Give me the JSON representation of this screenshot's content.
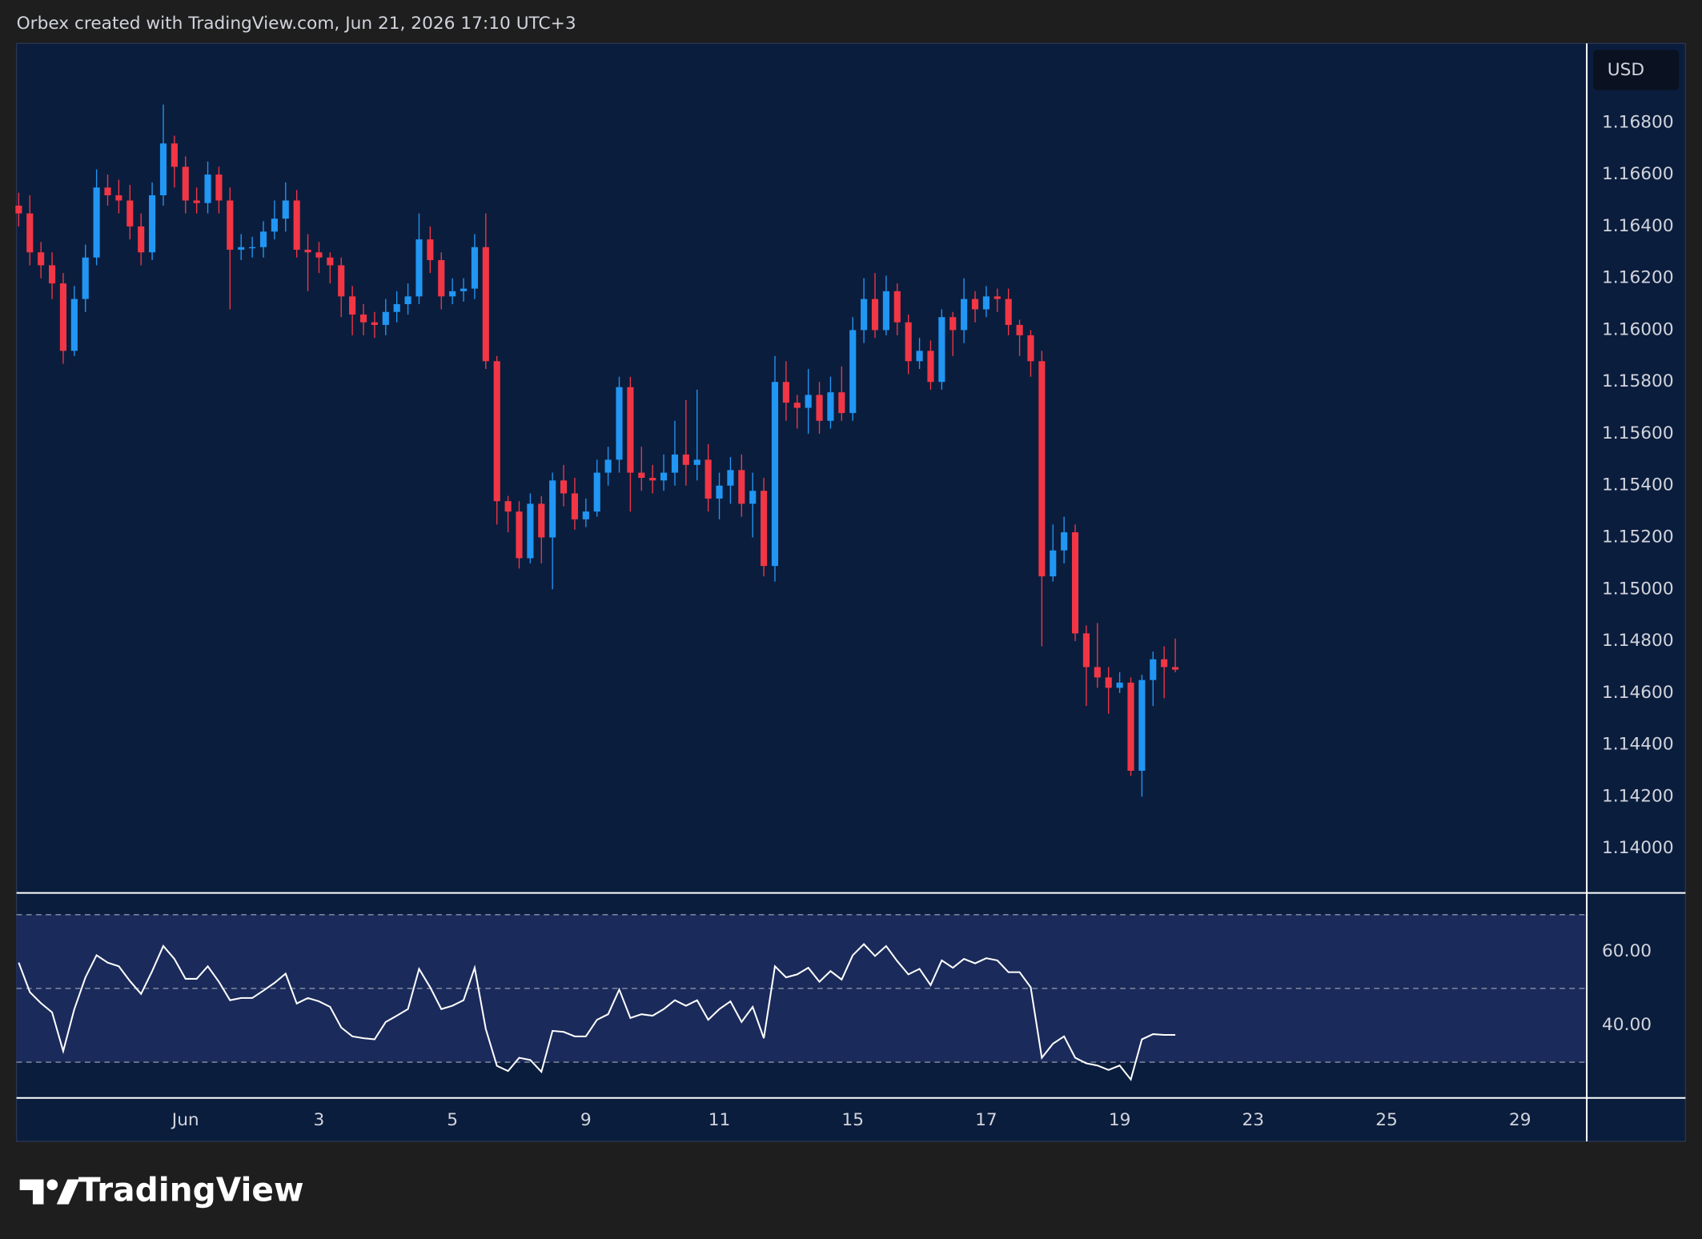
{
  "header": "Orbex created with TradingView.com, Jun 21, 2026 17:10 UTC+3",
  "currency": "USD",
  "brand": "TradingView",
  "chart_data": [
    {
      "type": "candlestick",
      "up_color": "#2196f3",
      "down_color": "#f23645",
      "x": [
        0,
        1,
        2,
        3,
        4,
        5,
        6,
        7,
        8,
        9,
        10,
        11,
        12,
        13,
        14,
        15,
        16,
        17,
        18,
        19,
        20,
        21,
        22,
        23,
        24,
        25,
        26,
        27,
        28,
        29,
        30,
        31,
        32,
        33,
        34,
        35,
        36,
        37,
        38,
        39,
        40,
        41,
        42,
        43,
        44,
        45,
        46,
        47,
        48,
        49,
        50,
        51,
        52,
        53,
        54,
        55,
        56,
        57,
        58,
        59,
        60,
        61,
        62,
        63,
        64,
        65,
        66,
        67,
        68,
        69,
        70,
        71,
        72,
        73,
        74,
        75,
        76,
        77,
        78,
        79,
        80,
        81,
        82,
        83,
        84,
        85,
        86,
        87,
        88,
        89,
        90,
        91,
        92,
        93,
        94,
        95,
        96,
        97,
        98,
        99,
        100,
        101,
        102,
        103,
        104
      ],
      "open": [
        1.1648,
        1.1645,
        1.163,
        1.1625,
        1.1618,
        1.1592,
        1.1612,
        1.1628,
        1.1655,
        1.1652,
        1.165,
        1.164,
        1.163,
        1.1652,
        1.1672,
        1.1663,
        1.165,
        1.1649,
        1.166,
        1.165,
        1.1631,
        1.1632,
        1.1632,
        1.1638,
        1.1643,
        1.165,
        1.1631,
        1.163,
        1.1628,
        1.1625,
        1.1613,
        1.1606,
        1.1603,
        1.1602,
        1.1607,
        1.161,
        1.1613,
        1.1635,
        1.1627,
        1.1613,
        1.1615,
        1.1616,
        1.1632,
        1.1588,
        1.1534,
        1.153,
        1.1512,
        1.1533,
        1.152,
        1.1542,
        1.1537,
        1.1527,
        1.153,
        1.1545,
        1.155,
        1.1578,
        1.1545,
        1.1543,
        1.1542,
        1.1545,
        1.1552,
        1.1548,
        1.155,
        1.1535,
        1.154,
        1.1546,
        1.1533,
        1.1538,
        1.1509,
        1.158,
        1.1572,
        1.157,
        1.1575,
        1.1565,
        1.1576,
        1.1568,
        1.16,
        1.1612,
        1.16,
        1.1615,
        1.1603,
        1.1588,
        1.1592,
        1.158,
        1.1605,
        1.16,
        1.1612,
        1.1608,
        1.1613,
        1.1612,
        1.1602,
        1.1598,
        1.1588,
        1.1505,
        1.1515,
        1.1522,
        1.1483,
        1.147,
        1.1466,
        1.1462,
        1.1464,
        1.143,
        1.1465,
        1.1473,
        1.147
      ],
      "high": [
        1.1653,
        1.1652,
        1.1634,
        1.163,
        1.1622,
        1.1617,
        1.1633,
        1.1662,
        1.166,
        1.1658,
        1.1656,
        1.1645,
        1.1657,
        1.1687,
        1.1675,
        1.1667,
        1.1655,
        1.1665,
        1.1663,
        1.1655,
        1.1637,
        1.1636,
        1.1642,
        1.165,
        1.1657,
        1.1654,
        1.1637,
        1.1634,
        1.163,
        1.1628,
        1.1617,
        1.161,
        1.1607,
        1.1612,
        1.1615,
        1.1618,
        1.1645,
        1.164,
        1.163,
        1.162,
        1.162,
        1.1637,
        1.1645,
        1.159,
        1.1536,
        1.1534,
        1.1537,
        1.1536,
        1.1545,
        1.1548,
        1.1543,
        1.1535,
        1.155,
        1.1555,
        1.1582,
        1.1582,
        1.1555,
        1.1548,
        1.1552,
        1.1565,
        1.1573,
        1.1577,
        1.1556,
        1.1545,
        1.1551,
        1.1552,
        1.1545,
        1.1543,
        1.159,
        1.1588,
        1.1575,
        1.1585,
        1.158,
        1.1582,
        1.1586,
        1.1605,
        1.162,
        1.1622,
        1.1621,
        1.1618,
        1.1606,
        1.1597,
        1.1596,
        1.1608,
        1.1607,
        1.162,
        1.1615,
        1.1617,
        1.1616,
        1.1616,
        1.1604,
        1.16,
        1.1592,
        1.1525,
        1.1528,
        1.1525,
        1.1486,
        1.1487,
        1.147,
        1.1468,
        1.1466,
        1.1467,
        1.1476,
        1.1478,
        1.1481
      ],
      "low": [
        1.164,
        1.1625,
        1.162,
        1.1612,
        1.1587,
        1.159,
        1.1607,
        1.1625,
        1.1648,
        1.1645,
        1.1635,
        1.1625,
        1.1627,
        1.1648,
        1.1655,
        1.1645,
        1.1645,
        1.1645,
        1.1645,
        1.1608,
        1.1627,
        1.1628,
        1.1628,
        1.1635,
        1.1638,
        1.1628,
        1.1615,
        1.1622,
        1.1618,
        1.1605,
        1.1598,
        1.1598,
        1.1597,
        1.1598,
        1.1603,
        1.1606,
        1.161,
        1.1622,
        1.1608,
        1.161,
        1.1611,
        1.1612,
        1.1585,
        1.1525,
        1.1522,
        1.1508,
        1.151,
        1.151,
        1.15,
        1.1532,
        1.1523,
        1.1524,
        1.1528,
        1.154,
        1.1545,
        1.153,
        1.1538,
        1.1537,
        1.1538,
        1.154,
        1.154,
        1.1542,
        1.153,
        1.1527,
        1.1533,
        1.1528,
        1.152,
        1.1505,
        1.1503,
        1.1565,
        1.1562,
        1.156,
        1.156,
        1.1562,
        1.1565,
        1.1565,
        1.1595,
        1.1597,
        1.1598,
        1.1598,
        1.1583,
        1.1585,
        1.1577,
        1.1577,
        1.159,
        1.1595,
        1.1603,
        1.1605,
        1.1607,
        1.1598,
        1.159,
        1.1582,
        1.1478,
        1.1503,
        1.151,
        1.148,
        1.1455,
        1.1462,
        1.1452,
        1.146,
        1.1428,
        1.142,
        1.1455,
        1.1458,
        1.1468
      ],
      "close": [
        1.1645,
        1.163,
        1.1625,
        1.1618,
        1.1592,
        1.1612,
        1.1628,
        1.1655,
        1.1652,
        1.165,
        1.164,
        1.163,
        1.1652,
        1.1672,
        1.1663,
        1.165,
        1.1649,
        1.166,
        1.165,
        1.1631,
        1.1632,
        1.1632,
        1.1638,
        1.1643,
        1.165,
        1.1631,
        1.163,
        1.1628,
        1.1625,
        1.1613,
        1.1606,
        1.1603,
        1.1602,
        1.1607,
        1.161,
        1.1613,
        1.1635,
        1.1627,
        1.1613,
        1.1615,
        1.1616,
        1.1632,
        1.1588,
        1.1534,
        1.153,
        1.1512,
        1.1533,
        1.152,
        1.1542,
        1.1537,
        1.1527,
        1.153,
        1.1545,
        1.155,
        1.1578,
        1.1545,
        1.1543,
        1.1542,
        1.1545,
        1.1552,
        1.1548,
        1.155,
        1.1535,
        1.154,
        1.1546,
        1.1533,
        1.1538,
        1.1509,
        1.158,
        1.1572,
        1.157,
        1.1575,
        1.1565,
        1.1576,
        1.1568,
        1.16,
        1.1612,
        1.16,
        1.1615,
        1.1603,
        1.1588,
        1.1592,
        1.158,
        1.1605,
        1.16,
        1.1612,
        1.1608,
        1.1613,
        1.1612,
        1.1602,
        1.1598,
        1.1588,
        1.1505,
        1.1515,
        1.1522,
        1.1483,
        1.147,
        1.1466,
        1.1462,
        1.1464,
        1.143,
        1.1465,
        1.1473,
        1.147,
        1.1469
      ],
      "xlim": [
        -0.2,
        141
      ],
      "ylim": [
        1.13833,
        1.17106
      ],
      "yticks": [
        {
          "value": 1.168,
          "label": "1.16800"
        },
        {
          "value": 1.166,
          "label": "1.16600"
        },
        {
          "value": 1.164,
          "label": "1.16400"
        },
        {
          "value": 1.162,
          "label": "1.16200"
        },
        {
          "value": 1.16,
          "label": "1.16000"
        },
        {
          "value": 1.158,
          "label": "1.15800"
        },
        {
          "value": 1.156,
          "label": "1.15600"
        },
        {
          "value": 1.154,
          "label": "1.15400"
        },
        {
          "value": 1.152,
          "label": "1.15200"
        },
        {
          "value": 1.15,
          "label": "1.15000"
        },
        {
          "value": 1.148,
          "label": "1.14800"
        },
        {
          "value": 1.146,
          "label": "1.14600"
        },
        {
          "value": 1.144,
          "label": "1.14400"
        },
        {
          "value": 1.142,
          "label": "1.14200"
        },
        {
          "value": 1.14,
          "label": "1.14000"
        }
      ],
      "grid": false
    },
    {
      "type": "line",
      "color": "#ffffff",
      "values": [
        57,
        49,
        46,
        43.5,
        33,
        44.4,
        53,
        59,
        57,
        56,
        52,
        48.5,
        54.7,
        61.5,
        58,
        52.6,
        52.6,
        56,
        51.8,
        46.8,
        47.4,
        47.4,
        49.4,
        51.5,
        54,
        45.9,
        47.4,
        46.5,
        45,
        39.4,
        37,
        36.5,
        36.2,
        40.9,
        42.6,
        44.4,
        55.3,
        50.3,
        44.4,
        45.3,
        46.8,
        55.6,
        39,
        29,
        27.6,
        31.2,
        30.6,
        27.4,
        38.5,
        38.2,
        37,
        37,
        41.5,
        43,
        49.7,
        42,
        43,
        42.6,
        44.4,
        46.8,
        45.3,
        46.8,
        41.5,
        44.4,
        46.5,
        40.9,
        45,
        36.5,
        56,
        53,
        53.8,
        55.6,
        51.8,
        54.7,
        52.4,
        59,
        62,
        58.8,
        61.5,
        57.4,
        53.8,
        55.3,
        50.9,
        57.6,
        55.6,
        58,
        56.8,
        58.2,
        57.6,
        54.4,
        54.4,
        50.3,
        31.2,
        35,
        37,
        31.2,
        29.7,
        29.1,
        27.9,
        29.1,
        25.3,
        36.2,
        37.6,
        37.4,
        37.4
      ],
      "levels": [
        70,
        50,
        30
      ],
      "ylim": [
        20.3,
        75.9
      ],
      "yticks": [
        {
          "value": 60,
          "label": "60.00"
        },
        {
          "value": 40,
          "label": "40.00"
        }
      ],
      "xticks": [
        {
          "value": 15,
          "label": "Jun"
        },
        {
          "value": 27,
          "label": "3"
        },
        {
          "value": 39,
          "label": "5"
        },
        {
          "value": 51,
          "label": "9"
        },
        {
          "value": 63,
          "label": "11"
        },
        {
          "value": 75,
          "label": "15"
        },
        {
          "value": 87,
          "label": "17"
        },
        {
          "value": 99,
          "label": "19"
        },
        {
          "value": 111,
          "label": "23"
        },
        {
          "value": 123,
          "label": "25"
        },
        {
          "value": 135,
          "label": "29"
        }
      ]
    }
  ]
}
